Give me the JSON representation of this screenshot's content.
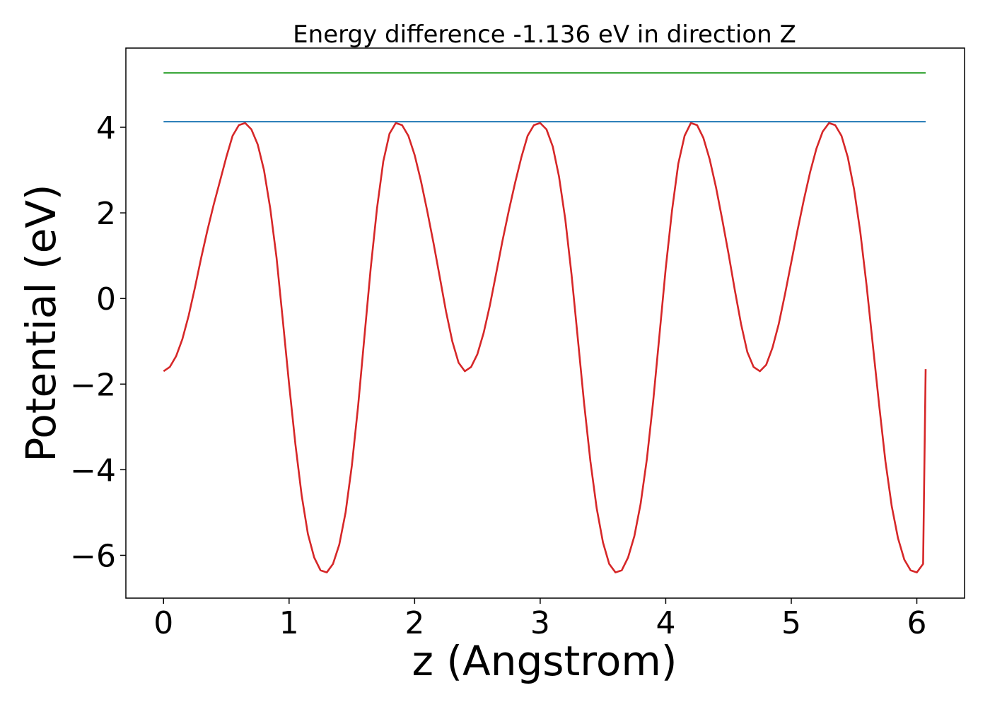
{
  "chart_data": {
    "type": "line",
    "title": "Energy difference -1.136 eV in direction Z",
    "xlabel": "z (Angstrom)",
    "ylabel": "Potential (eV)",
    "xlim": [
      -0.3,
      6.38
    ],
    "ylim": [
      -7.0,
      5.85
    ],
    "x_ticks": [
      0,
      1,
      2,
      3,
      4,
      5,
      6
    ],
    "x_tick_labels": [
      "0",
      "1",
      "2",
      "3",
      "4",
      "5",
      "6"
    ],
    "y_ticks": [
      -6,
      -4,
      -2,
      0,
      2,
      4
    ],
    "y_tick_labels": [
      "−6",
      "−4",
      "−2",
      "0",
      "2",
      "4"
    ],
    "grid": false,
    "series": [
      {
        "color": "#d62728",
        "kind": "curve",
        "x": [
          0.0,
          0.05,
          0.1,
          0.15,
          0.2,
          0.25,
          0.3,
          0.35,
          0.4,
          0.45,
          0.5,
          0.55,
          0.6,
          0.65,
          0.7,
          0.75,
          0.8,
          0.85,
          0.9,
          0.95,
          1.0,
          1.05,
          1.1,
          1.15,
          1.2,
          1.25,
          1.3,
          1.35,
          1.4,
          1.45,
          1.5,
          1.55,
          1.6,
          1.65,
          1.7,
          1.75,
          1.8,
          1.85,
          1.9,
          1.95,
          2.0,
          2.05,
          2.1,
          2.15,
          2.2,
          2.25,
          2.3,
          2.35,
          2.4,
          2.45,
          2.5,
          2.55,
          2.6,
          2.65,
          2.7,
          2.75,
          2.8,
          2.85,
          2.9,
          2.95,
          3.0,
          3.05,
          3.1,
          3.15,
          3.2,
          3.25,
          3.3,
          3.35,
          3.4,
          3.45,
          3.5,
          3.55,
          3.6,
          3.65,
          3.7,
          3.75,
          3.8,
          3.85,
          3.9,
          3.95,
          4.0,
          4.05,
          4.1,
          4.15,
          4.2,
          4.25,
          4.3,
          4.35,
          4.4,
          4.45,
          4.5,
          4.55,
          4.6,
          4.65,
          4.7,
          4.75,
          4.8,
          4.85,
          4.9,
          4.95,
          5.0,
          5.05,
          5.1,
          5.15,
          5.2,
          5.25,
          5.3,
          5.35,
          5.4,
          5.45,
          5.5,
          5.55,
          5.6,
          5.65,
          5.7,
          5.75,
          5.8,
          5.85,
          5.9,
          5.95,
          6.0,
          6.05,
          6.07
        ],
        "y": [
          -1.7,
          -1.6,
          -1.35,
          -0.95,
          -0.4,
          0.25,
          0.95,
          1.6,
          2.2,
          2.75,
          3.3,
          3.8,
          4.05,
          4.1,
          3.95,
          3.6,
          3.0,
          2.1,
          0.95,
          -0.5,
          -2.0,
          -3.4,
          -4.6,
          -5.5,
          -6.05,
          -6.35,
          -6.4,
          -6.2,
          -5.75,
          -5.0,
          -3.9,
          -2.5,
          -0.9,
          0.7,
          2.1,
          3.2,
          3.85,
          4.1,
          4.05,
          3.8,
          3.35,
          2.75,
          2.05,
          1.3,
          0.5,
          -0.3,
          -1.0,
          -1.5,
          -1.7,
          -1.6,
          -1.3,
          -0.8,
          -0.15,
          0.6,
          1.35,
          2.05,
          2.7,
          3.3,
          3.8,
          4.05,
          4.1,
          3.95,
          3.55,
          2.85,
          1.85,
          0.55,
          -0.95,
          -2.45,
          -3.8,
          -4.9,
          -5.7,
          -6.2,
          -6.4,
          -6.35,
          -6.05,
          -5.55,
          -4.8,
          -3.75,
          -2.4,
          -0.85,
          0.7,
          2.05,
          3.15,
          3.8,
          4.1,
          4.05,
          3.75,
          3.25,
          2.6,
          1.85,
          1.05,
          0.2,
          -0.6,
          -1.25,
          -1.6,
          -1.7,
          -1.55,
          -1.15,
          -0.6,
          0.1,
          0.85,
          1.6,
          2.3,
          2.95,
          3.5,
          3.9,
          4.1,
          4.05,
          3.8,
          3.3,
          2.55,
          1.55,
          0.3,
          -1.1,
          -2.5,
          -3.8,
          -4.85,
          -5.6,
          -6.1,
          -6.35,
          -6.4,
          -6.2,
          -1.65
        ]
      },
      {
        "color": "#1f77b4",
        "kind": "hline",
        "x": [
          0.0,
          6.07
        ],
        "y": [
          4.13,
          4.13
        ]
      },
      {
        "color": "#2ca02c",
        "kind": "hline",
        "x": [
          0.0,
          6.07
        ],
        "y": [
          5.27,
          5.27
        ]
      }
    ]
  }
}
